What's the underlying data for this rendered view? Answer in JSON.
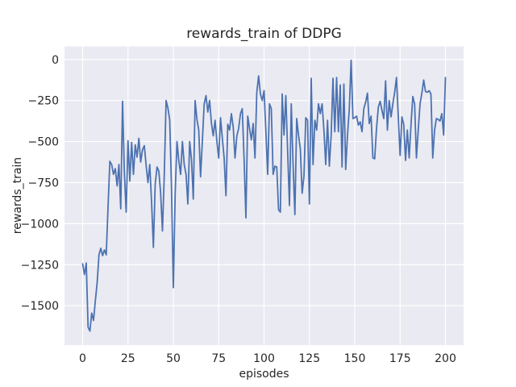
{
  "figure": {
    "background": "#ffffff"
  },
  "chart_data": {
    "type": "line",
    "title": "rewards_train of DDPG",
    "xlabel": "episodes",
    "ylabel": "rewards_train",
    "x_start": 0,
    "x_step": 1,
    "xticks": [
      0,
      25,
      50,
      75,
      100,
      125,
      150,
      175,
      200
    ],
    "yticks": [
      0,
      -250,
      -500,
      -750,
      -1000,
      -1250,
      -1500
    ],
    "xlim": [
      -10,
      210
    ],
    "ylim": [
      -1740,
      80
    ],
    "grid": true,
    "legend_position": "none",
    "line_color": "#4c72b0",
    "plot_background": "#eaeaf2",
    "grid_color": "#ffffff",
    "text_color": "#262626",
    "series": [
      {
        "name": "rewards_train",
        "values": [
          -1245,
          -1310,
          -1240,
          -1630,
          -1655,
          -1545,
          -1590,
          -1470,
          -1360,
          -1190,
          -1150,
          -1195,
          -1160,
          -1190,
          -900,
          -620,
          -640,
          -700,
          -665,
          -770,
          -640,
          -910,
          -255,
          -690,
          -930,
          -495,
          -740,
          -505,
          -700,
          -520,
          -595,
          -480,
          -625,
          -550,
          -525,
          -645,
          -750,
          -640,
          -870,
          -1145,
          -760,
          -655,
          -680,
          -815,
          -1045,
          -705,
          -250,
          -295,
          -370,
          -790,
          -1390,
          -820,
          -500,
          -615,
          -700,
          -500,
          -640,
          -700,
          -880,
          -500,
          -610,
          -850,
          -250,
          -365,
          -430,
          -715,
          -495,
          -270,
          -220,
          -320,
          -250,
          -390,
          -465,
          -370,
          -500,
          -600,
          -355,
          -480,
          -600,
          -830,
          -395,
          -430,
          -330,
          -410,
          -600,
          -465,
          -420,
          -330,
          -300,
          -610,
          -965,
          -345,
          -420,
          -490,
          -390,
          -600,
          -200,
          -100,
          -210,
          -250,
          -190,
          -435,
          -700,
          -270,
          -300,
          -700,
          -650,
          -655,
          -915,
          -930,
          -210,
          -460,
          -220,
          -555,
          -890,
          -270,
          -640,
          -945,
          -360,
          -460,
          -545,
          -815,
          -710,
          -355,
          -370,
          -880,
          -115,
          -640,
          -370,
          -430,
          -270,
          -330,
          -270,
          -430,
          -640,
          -370,
          -650,
          -460,
          -115,
          -440,
          -110,
          -440,
          -155,
          -655,
          -150,
          -670,
          -460,
          -300,
          -5,
          -360,
          -355,
          -345,
          -400,
          -380,
          -440,
          -300,
          -260,
          -205,
          -390,
          -345,
          -600,
          -605,
          -420,
          -290,
          -255,
          -310,
          -360,
          -130,
          -430,
          -250,
          -350,
          -270,
          -200,
          -110,
          -350,
          -585,
          -350,
          -395,
          -615,
          -430,
          -600,
          -400,
          -225,
          -270,
          -600,
          -430,
          -270,
          -205,
          -125,
          -195,
          -200,
          -190,
          -210,
          -600,
          -430,
          -360,
          -365,
          -375,
          -330,
          -460,
          -110
        ]
      }
    ]
  }
}
